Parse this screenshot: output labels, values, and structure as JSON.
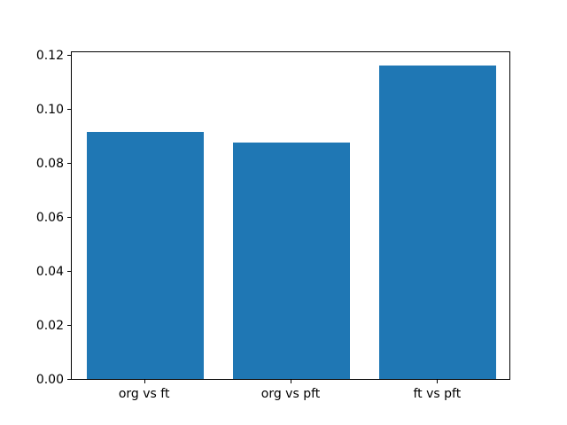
{
  "chart_data": {
    "type": "bar",
    "categories": [
      "org vs ft",
      "org vs pft",
      "ft vs pft"
    ],
    "values": [
      0.0915,
      0.0878,
      0.1162
    ],
    "title": "",
    "xlabel": "",
    "ylabel": "",
    "ylim": [
      0,
      0.1218
    ],
    "yticks": [
      0.0,
      0.02,
      0.04,
      0.06,
      0.08,
      0.1,
      0.12
    ],
    "ytick_labels": [
      "0.00",
      "0.02",
      "0.04",
      "0.06",
      "0.08",
      "0.10",
      "0.12"
    ],
    "bar_color": "#1f77b4",
    "axis_color": "#000000",
    "background_color": "#ffffff",
    "grid": false,
    "legend": null
  }
}
